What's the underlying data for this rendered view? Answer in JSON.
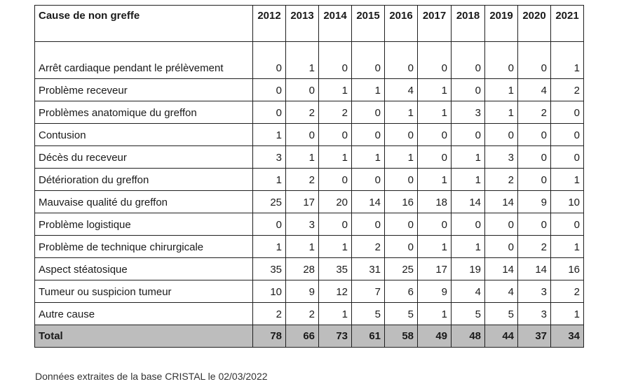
{
  "table": {
    "header": {
      "cause_label": "Cause de non greffe",
      "years": [
        "2012",
        "2013",
        "2014",
        "2015",
        "2016",
        "2017",
        "2018",
        "2019",
        "2020",
        "2021"
      ]
    },
    "rows": [
      {
        "cause": "Arrêt cardiaque pendant le prélèvement",
        "values": [
          "0",
          "1",
          "0",
          "0",
          "0",
          "0",
          "0",
          "0",
          "0",
          "1"
        ]
      },
      {
        "cause": "Problème receveur",
        "values": [
          "0",
          "0",
          "1",
          "1",
          "4",
          "1",
          "0",
          "1",
          "4",
          "2"
        ]
      },
      {
        "cause": "Problèmes anatomique du greffon",
        "values": [
          "0",
          "2",
          "2",
          "0",
          "1",
          "1",
          "3",
          "1",
          "2",
          "0"
        ]
      },
      {
        "cause": "Contusion",
        "values": [
          "1",
          "0",
          "0",
          "0",
          "0",
          "0",
          "0",
          "0",
          "0",
          "0"
        ]
      },
      {
        "cause": "Décès du receveur",
        "values": [
          "3",
          "1",
          "1",
          "1",
          "1",
          "0",
          "1",
          "3",
          "0",
          "0"
        ]
      },
      {
        "cause": "Détérioration du greffon",
        "values": [
          "1",
          "2",
          "0",
          "0",
          "0",
          "1",
          "1",
          "2",
          "0",
          "1"
        ]
      },
      {
        "cause": "Mauvaise qualité du greffon",
        "values": [
          "25",
          "17",
          "20",
          "14",
          "16",
          "18",
          "14",
          "14",
          "9",
          "10"
        ]
      },
      {
        "cause": "Problème logistique",
        "values": [
          "0",
          "3",
          "0",
          "0",
          "0",
          "0",
          "0",
          "0",
          "0",
          "0"
        ]
      },
      {
        "cause": "Problème de technique chirurgicale",
        "values": [
          "1",
          "1",
          "1",
          "2",
          "0",
          "1",
          "1",
          "0",
          "2",
          "1"
        ]
      },
      {
        "cause": "Aspect stéatosique",
        "values": [
          "35",
          "28",
          "35",
          "31",
          "25",
          "17",
          "19",
          "14",
          "14",
          "16"
        ]
      },
      {
        "cause": "Tumeur ou suspicion tumeur",
        "values": [
          "10",
          "9",
          "12",
          "7",
          "6",
          "9",
          "4",
          "4",
          "3",
          "2"
        ]
      },
      {
        "cause": "Autre cause",
        "values": [
          "2",
          "2",
          "1",
          "5",
          "5",
          "1",
          "5",
          "5",
          "3",
          "1"
        ]
      }
    ],
    "total": {
      "label": "Total",
      "values": [
        "78",
        "66",
        "73",
        "61",
        "58",
        "49",
        "48",
        "44",
        "37",
        "34"
      ]
    }
  },
  "footnote": "Données extraites de la base CRISTAL le 02/03/2022",
  "colors": {
    "border": "#1f1f1f",
    "total_row_bg": "#bdbdbd"
  }
}
